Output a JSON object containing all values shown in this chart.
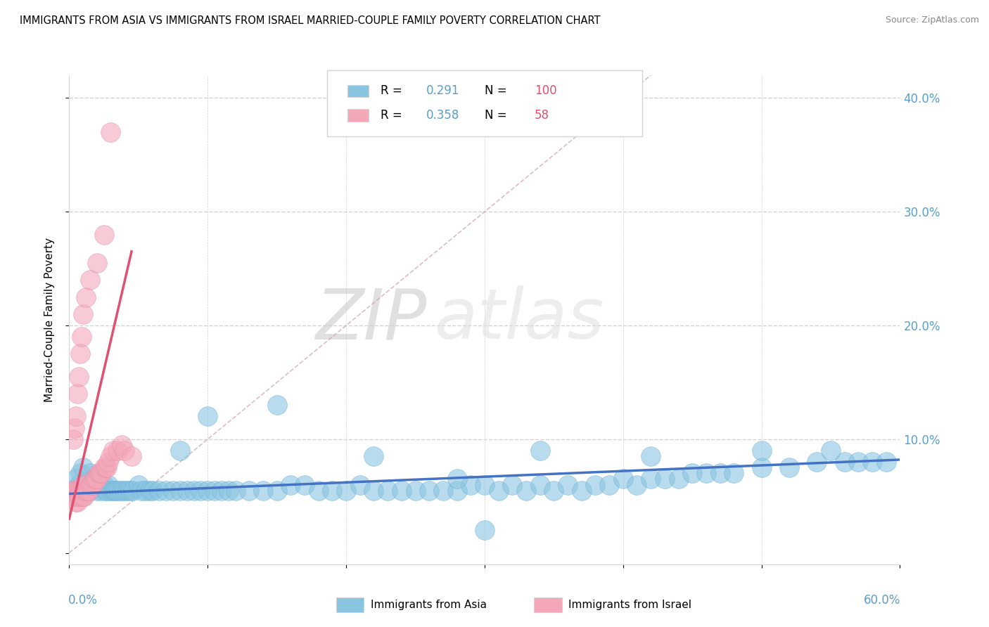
{
  "title": "IMMIGRANTS FROM ASIA VS IMMIGRANTS FROM ISRAEL MARRIED-COUPLE FAMILY POVERTY CORRELATION CHART",
  "source": "Source: ZipAtlas.com",
  "ylabel": "Married-Couple Family Poverty",
  "xlim": [
    0.0,
    0.6
  ],
  "ylim": [
    -0.01,
    0.42
  ],
  "color_asia": "#89C4E1",
  "color_israel": "#F4A7B9",
  "color_asia_line": "#4472C4",
  "color_israel_line": "#E05070",
  "color_diagonal": "#D0A0A8",
  "watermark_zip": "ZIP",
  "watermark_atlas": "atlas",
  "asia_x": [
    0.005,
    0.007,
    0.008,
    0.01,
    0.01,
    0.01,
    0.012,
    0.015,
    0.015,
    0.016,
    0.018,
    0.019,
    0.02,
    0.02,
    0.022,
    0.023,
    0.025,
    0.026,
    0.027,
    0.028,
    0.03,
    0.032,
    0.033,
    0.034,
    0.036,
    0.038,
    0.04,
    0.042,
    0.044,
    0.046,
    0.05,
    0.052,
    0.055,
    0.058,
    0.06,
    0.065,
    0.07,
    0.075,
    0.08,
    0.085,
    0.09,
    0.095,
    0.1,
    0.105,
    0.11,
    0.115,
    0.12,
    0.13,
    0.14,
    0.15,
    0.16,
    0.17,
    0.18,
    0.19,
    0.2,
    0.21,
    0.22,
    0.23,
    0.24,
    0.25,
    0.26,
    0.27,
    0.28,
    0.29,
    0.3,
    0.31,
    0.32,
    0.33,
    0.34,
    0.35,
    0.36,
    0.37,
    0.38,
    0.39,
    0.4,
    0.41,
    0.42,
    0.43,
    0.44,
    0.45,
    0.46,
    0.47,
    0.48,
    0.5,
    0.52,
    0.54,
    0.56,
    0.57,
    0.58,
    0.59,
    0.15,
    0.22,
    0.28,
    0.34,
    0.42,
    0.5,
    0.55,
    0.3,
    0.1,
    0.08
  ],
  "asia_y": [
    0.065,
    0.06,
    0.07,
    0.075,
    0.055,
    0.05,
    0.06,
    0.07,
    0.055,
    0.06,
    0.065,
    0.06,
    0.065,
    0.055,
    0.06,
    0.055,
    0.06,
    0.055,
    0.055,
    0.06,
    0.055,
    0.055,
    0.055,
    0.055,
    0.055,
    0.055,
    0.055,
    0.055,
    0.055,
    0.055,
    0.06,
    0.055,
    0.055,
    0.055,
    0.055,
    0.055,
    0.055,
    0.055,
    0.055,
    0.055,
    0.055,
    0.055,
    0.055,
    0.055,
    0.055,
    0.055,
    0.055,
    0.055,
    0.055,
    0.055,
    0.06,
    0.06,
    0.055,
    0.055,
    0.055,
    0.06,
    0.055,
    0.055,
    0.055,
    0.055,
    0.055,
    0.055,
    0.055,
    0.06,
    0.06,
    0.055,
    0.06,
    0.055,
    0.06,
    0.055,
    0.06,
    0.055,
    0.06,
    0.06,
    0.065,
    0.06,
    0.065,
    0.065,
    0.065,
    0.07,
    0.07,
    0.07,
    0.07,
    0.075,
    0.075,
    0.08,
    0.08,
    0.08,
    0.08,
    0.08,
    0.13,
    0.085,
    0.065,
    0.09,
    0.085,
    0.09,
    0.09,
    0.02,
    0.12,
    0.09
  ],
  "israel_x": [
    0.002,
    0.003,
    0.003,
    0.004,
    0.004,
    0.005,
    0.005,
    0.005,
    0.006,
    0.006,
    0.006,
    0.007,
    0.007,
    0.008,
    0.008,
    0.009,
    0.009,
    0.01,
    0.01,
    0.01,
    0.011,
    0.011,
    0.012,
    0.012,
    0.013,
    0.014,
    0.015,
    0.016,
    0.017,
    0.018,
    0.019,
    0.02,
    0.021,
    0.022,
    0.023,
    0.025,
    0.026,
    0.027,
    0.028,
    0.03,
    0.032,
    0.035,
    0.038,
    0.04,
    0.045,
    0.003,
    0.004,
    0.005,
    0.006,
    0.007,
    0.008,
    0.009,
    0.01,
    0.012,
    0.015,
    0.02,
    0.025,
    0.03
  ],
  "israel_y": [
    0.05,
    0.055,
    0.05,
    0.055,
    0.05,
    0.055,
    0.05,
    0.045,
    0.055,
    0.05,
    0.045,
    0.055,
    0.05,
    0.055,
    0.05,
    0.055,
    0.05,
    0.06,
    0.055,
    0.05,
    0.055,
    0.05,
    0.06,
    0.055,
    0.055,
    0.055,
    0.06,
    0.06,
    0.06,
    0.065,
    0.065,
    0.065,
    0.07,
    0.07,
    0.07,
    0.075,
    0.075,
    0.075,
    0.08,
    0.085,
    0.09,
    0.09,
    0.095,
    0.09,
    0.085,
    0.1,
    0.11,
    0.12,
    0.14,
    0.155,
    0.175,
    0.19,
    0.21,
    0.225,
    0.24,
    0.255,
    0.28,
    0.37
  ],
  "israel_trend_x": [
    0.0,
    0.045
  ],
  "israel_trend_y": [
    0.03,
    0.265
  ],
  "asia_trend_x": [
    0.0,
    0.6
  ],
  "asia_trend_y": [
    0.052,
    0.082
  ]
}
